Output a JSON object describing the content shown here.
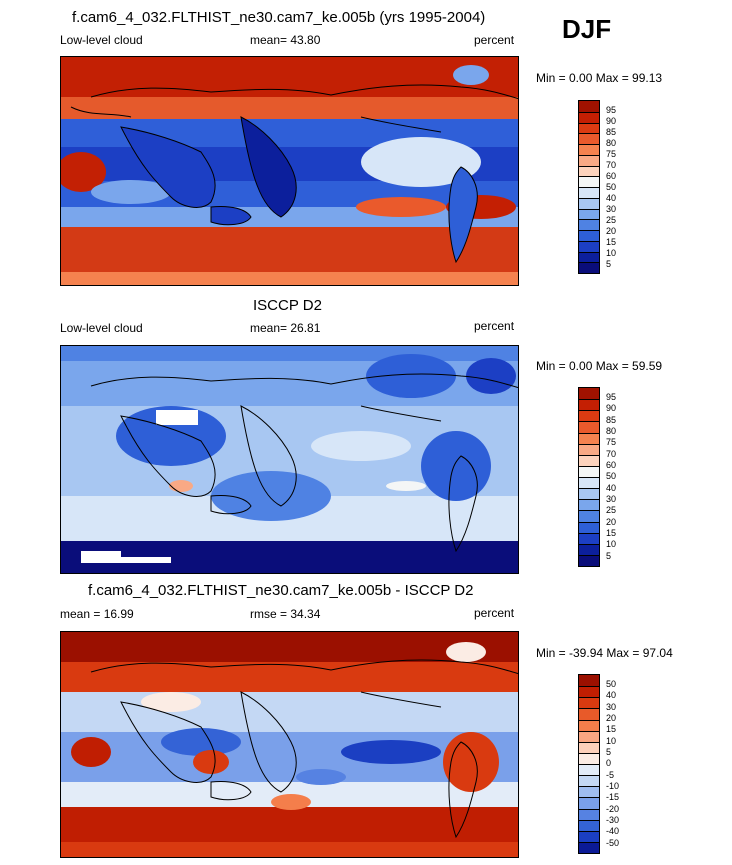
{
  "season": "DJF",
  "panels": [
    {
      "title": "f.cam6_4_032.FLTHIST_ne30.cam7_ke.005b (yrs 1995-2004)",
      "left_label": "Low-level cloud",
      "center_label": "mean=  43.80",
      "right_label": "percent",
      "minmax": "Min =   0.00 Max =  99.13",
      "palette": "abs",
      "ticks": [
        "95",
        "90",
        "85",
        "80",
        "75",
        "70",
        "60",
        "50",
        "40",
        "30",
        "25",
        "20",
        "15",
        "10",
        "5"
      ]
    },
    {
      "title": "ISCCP D2",
      "left_label": "Low-level cloud",
      "center_label": "mean=  26.81",
      "right_label": "percent",
      "minmax": "Min =   0.00 Max =  59.59",
      "palette": "abs",
      "ticks": [
        "95",
        "90",
        "85",
        "80",
        "75",
        "70",
        "60",
        "50",
        "40",
        "30",
        "25",
        "20",
        "15",
        "10",
        "5"
      ]
    },
    {
      "title": "f.cam6_4_032.FLTHIST_ne30.cam7_ke.005b - ISCCP D2",
      "left_label": "mean =  16.99",
      "center_label": "rmse =  34.34",
      "right_label": "percent",
      "minmax": "Min = -39.94 Max =  97.04",
      "palette": "diff",
      "ticks": [
        "50",
        "40",
        "30",
        "20",
        "15",
        "10",
        "5",
        "0",
        "-5",
        "-10",
        "-15",
        "-20",
        "-30",
        "-40",
        "-50"
      ]
    }
  ],
  "colors": {
    "abs": [
      "#a01200",
      "#c41f03",
      "#dc3b12",
      "#ea5a2c",
      "#f5824f",
      "#f9a985",
      "#fdd3bd",
      "#f4f6f6",
      "#d7e6f8",
      "#a8c7f2",
      "#7aa6ec",
      "#4f82e3",
      "#2e5fd7",
      "#1c3fc4",
      "#0c1f9c",
      "#0a0d7a"
    ],
    "diff": [
      "#9b1000",
      "#c01e02",
      "#d93a10",
      "#e85a29",
      "#f47e4b",
      "#f9a682",
      "#fdd0ba",
      "#fbece4",
      "#e3ecf8",
      "#c4d8f4",
      "#9fbdf0",
      "#7aa0ea",
      "#5682e2",
      "#3463d6",
      "#1b3fc2",
      "#0b1a96"
    ],
    "land_outline": "#000000",
    "missing": "#ffffff"
  }
}
